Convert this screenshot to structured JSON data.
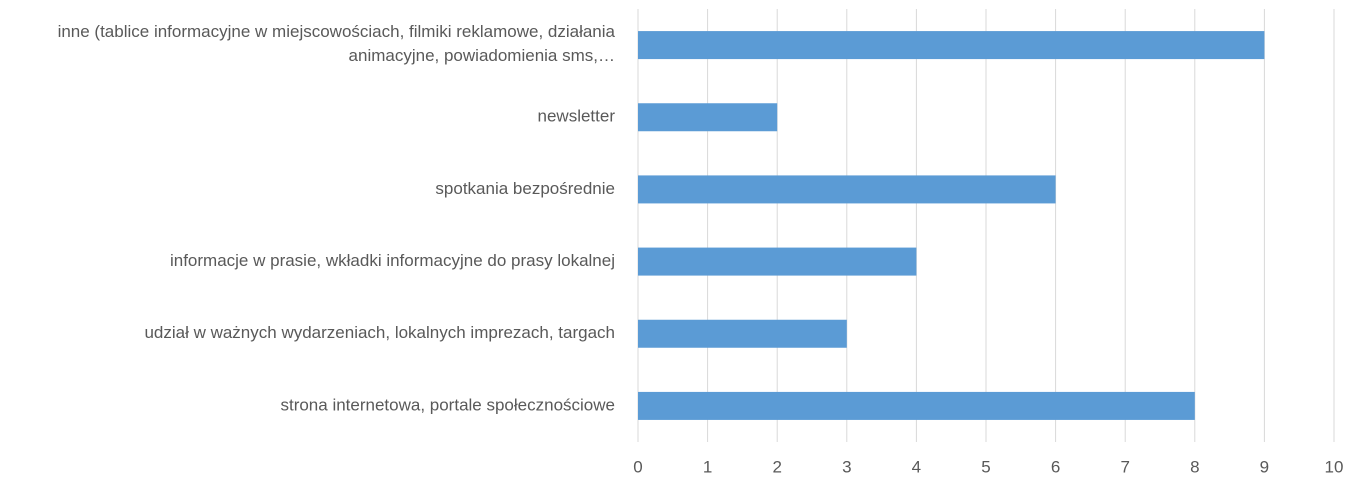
{
  "chart_data": {
    "type": "barh",
    "categories": [
      "inne (tablice informacyjne w miejscowościach, filmiki reklamowe, działania animacyjne, powiadomienia sms,…",
      "newsletter",
      "spotkania bezpośrednie",
      "informacje w prasie, wkładki informacyjne do prasy lokalnej",
      "udział w ważnych wydarzeniach, lokalnych imprezach, targach",
      "strona internetowa, portale społecznościowe"
    ],
    "values": [
      9,
      2,
      6,
      4,
      3,
      8
    ],
    "color": "#5b9bd5",
    "xlim": [
      0,
      10
    ],
    "xticks": [
      0,
      1,
      2,
      3,
      4,
      5,
      6,
      7,
      8,
      9,
      10
    ],
    "grid": true
  }
}
